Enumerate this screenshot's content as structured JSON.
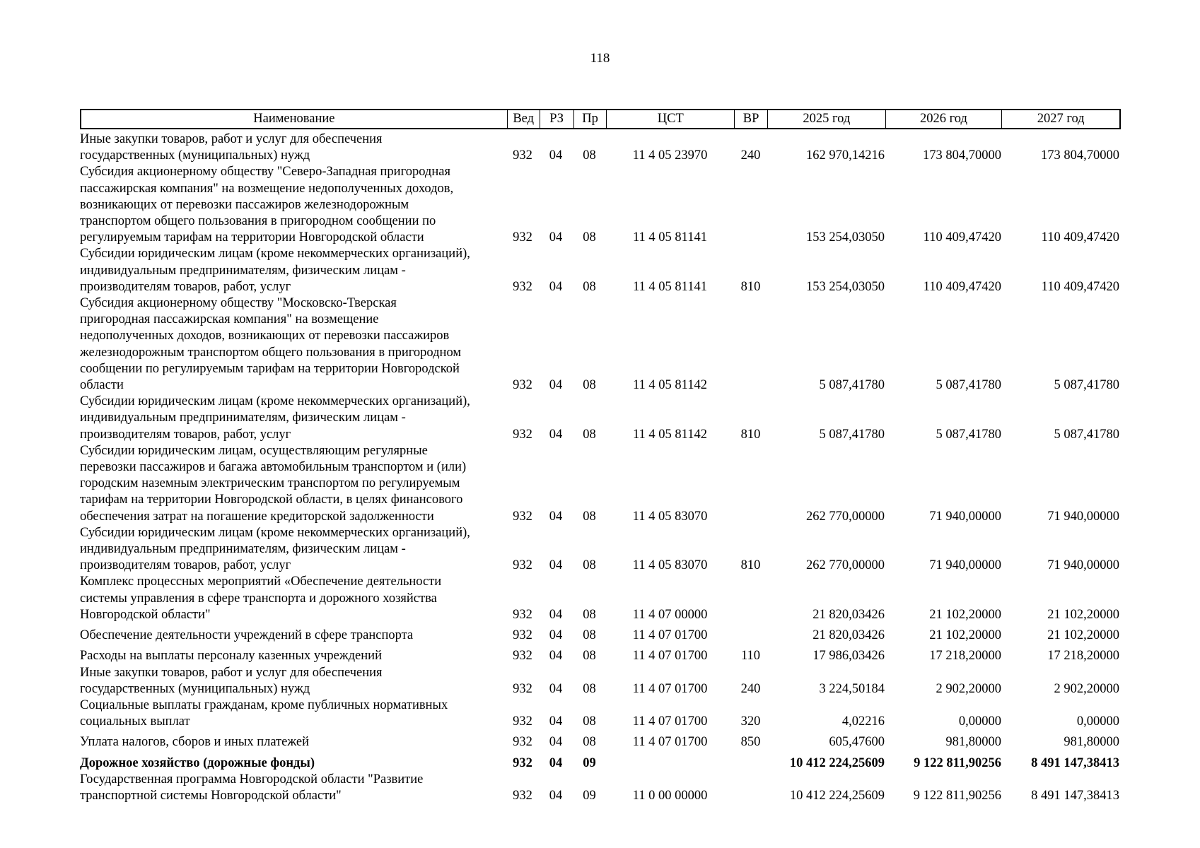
{
  "page_number": "118",
  "headers": [
    "Наименование",
    "Вед",
    "РЗ",
    "Пр",
    "ЦСТ",
    "ВР",
    "2025 год",
    "2026 год",
    "2027 год"
  ],
  "rows": [
    {
      "name": [
        "Иные закупки товаров, работ и услуг для обеспечения",
        "государственных (муниципальных) нужд"
      ],
      "ved": "932",
      "rz": "04",
      "pr": "08",
      "cst": "11 4 05 23970",
      "vr": "240",
      "y2025": "162 970,14216",
      "y2026": "173 804,70000",
      "y2027": "173 804,70000"
    },
    {
      "name": [
        "Субсидия акционерному обществу \"Северо-Западная пригородная",
        "пассажирская компания\" на возмещение недополученных доходов,",
        "возникающих от перевозки пассажиров железнодорожным",
        "транспортом общего пользования в пригородном сообщении по",
        "регулируемым тарифам на территории Новгородской области"
      ],
      "ved": "932",
      "rz": "04",
      "pr": "08",
      "cst": "11 4 05 81141",
      "vr": "",
      "y2025": "153 254,03050",
      "y2026": "110 409,47420",
      "y2027": "110 409,47420"
    },
    {
      "name": [
        "Субсидии юридическим лицам (кроме некоммерческих организаций),",
        "индивидуальным предпринимателям, физическим лицам -",
        "производителям товаров, работ, услуг"
      ],
      "ved": "932",
      "rz": "04",
      "pr": "08",
      "cst": "11 4 05 81141",
      "vr": "810",
      "y2025": "153 254,03050",
      "y2026": "110 409,47420",
      "y2027": "110 409,47420"
    },
    {
      "name": [
        "Субсидия акционерному обществу \"Московско-Тверская",
        "пригородная пассажирская компания\" на возмещение",
        "недополученных доходов, возникающих от перевозки пассажиров",
        "железнодорожным транспортом общего пользования в пригородном",
        "сообщении по регулируемым тарифам на территории Новгородской",
        "области"
      ],
      "ved": "932",
      "rz": "04",
      "pr": "08",
      "cst": "11 4 05 81142",
      "vr": "",
      "y2025": "5 087,41780",
      "y2026": "5 087,41780",
      "y2027": "5 087,41780"
    },
    {
      "name": [
        "Субсидии юридическим лицам (кроме некоммерческих организаций),",
        "индивидуальным предпринимателям, физическим лицам -",
        "производителям товаров, работ, услуг"
      ],
      "ved": "932",
      "rz": "04",
      "pr": "08",
      "cst": "11 4 05 81142",
      "vr": "810",
      "y2025": "5 087,41780",
      "y2026": "5 087,41780",
      "y2027": "5 087,41780"
    },
    {
      "name": [
        "Субсидии юридическим лицам, осуществляющим регулярные",
        "перевозки пассажиров и багажа автомобильным транспортом и (или)",
        "городским наземным электрическим транспортом по регулируемым",
        "тарифам на территории Новгородской области, в целях финансового",
        "обеспечения затрат на погашение кредиторской задолженности"
      ],
      "ved": "932",
      "rz": "04",
      "pr": "08",
      "cst": "11 4 05 83070",
      "vr": "",
      "y2025": "262 770,00000",
      "y2026": "71 940,00000",
      "y2027": "71 940,00000"
    },
    {
      "name": [
        "Субсидии юридическим лицам (кроме некоммерческих организаций),",
        "индивидуальным предпринимателям, физическим лицам -",
        "производителям товаров, работ, услуг"
      ],
      "ved": "932",
      "rz": "04",
      "pr": "08",
      "cst": "11 4 05 83070",
      "vr": "810",
      "y2025": "262 770,00000",
      "y2026": "71 940,00000",
      "y2027": "71 940,00000"
    },
    {
      "name": [
        "Комплекс процессных мероприятий «Обеспечение деятельности",
        "системы управления в сфере транспорта и дорожного хозяйства",
        "Новгородской области\""
      ],
      "ved": "932",
      "rz": "04",
      "pr": "08",
      "cst": "11 4 07 00000",
      "vr": "",
      "y2025": "21 820,03426",
      "y2026": "21 102,20000",
      "y2027": "21 102,20000"
    },
    {
      "name": [
        "Обеспечение деятельности учреждений в сфере транспорта"
      ],
      "ved": "932",
      "rz": "04",
      "pr": "08",
      "cst": "11 4 07 01700",
      "vr": "",
      "y2025": "21 820,03426",
      "y2026": "21 102,20000",
      "y2027": "21 102,20000"
    },
    {
      "name": [
        "Расходы на выплаты персоналу казенных учреждений"
      ],
      "ved": "932",
      "rz": "04",
      "pr": "08",
      "cst": "11 4 07 01700",
      "vr": "110",
      "y2025": "17 986,03426",
      "y2026": "17 218,20000",
      "y2027": "17 218,20000"
    },
    {
      "name": [
        "Иные закупки товаров, работ и услуг для обеспечения",
        "государственных (муниципальных) нужд"
      ],
      "ved": "932",
      "rz": "04",
      "pr": "08",
      "cst": "11 4 07 01700",
      "vr": "240",
      "y2025": "3 224,50184",
      "y2026": "2 902,20000",
      "y2027": "2 902,20000"
    },
    {
      "name": [
        "Социальные выплаты гражданам, кроме публичных нормативных",
        "социальных выплат"
      ],
      "ved": "932",
      "rz": "04",
      "pr": "08",
      "cst": "11 4 07 01700",
      "vr": "320",
      "y2025": "4,02216",
      "y2026": "0,00000",
      "y2027": "0,00000"
    },
    {
      "name": [
        "Уплата налогов, сборов и иных платежей"
      ],
      "ved": "932",
      "rz": "04",
      "pr": "08",
      "cst": "11 4 07 01700",
      "vr": "850",
      "y2025": "605,47600",
      "y2026": "981,80000",
      "y2027": "981,80000"
    },
    {
      "name": [
        "Дорожное хозяйство (дорожные фонды)"
      ],
      "bold": true,
      "ved": "932",
      "rz": "04",
      "pr": "09",
      "cst": "",
      "vr": "",
      "y2025": "10 412 224,25609",
      "y2026": "9 122 811,90256",
      "y2027": "8 491 147,38413"
    },
    {
      "name": [
        "Государственная программа Новгородской области \"Развитие",
        "транспортной системы Новгородской области\""
      ],
      "ved": "932",
      "rz": "04",
      "pr": "09",
      "cst": "11 0 00 00000",
      "vr": "",
      "y2025": "10 412 224,25609",
      "y2026": "9 122 811,90256",
      "y2027": "8 491 147,38413"
    }
  ]
}
